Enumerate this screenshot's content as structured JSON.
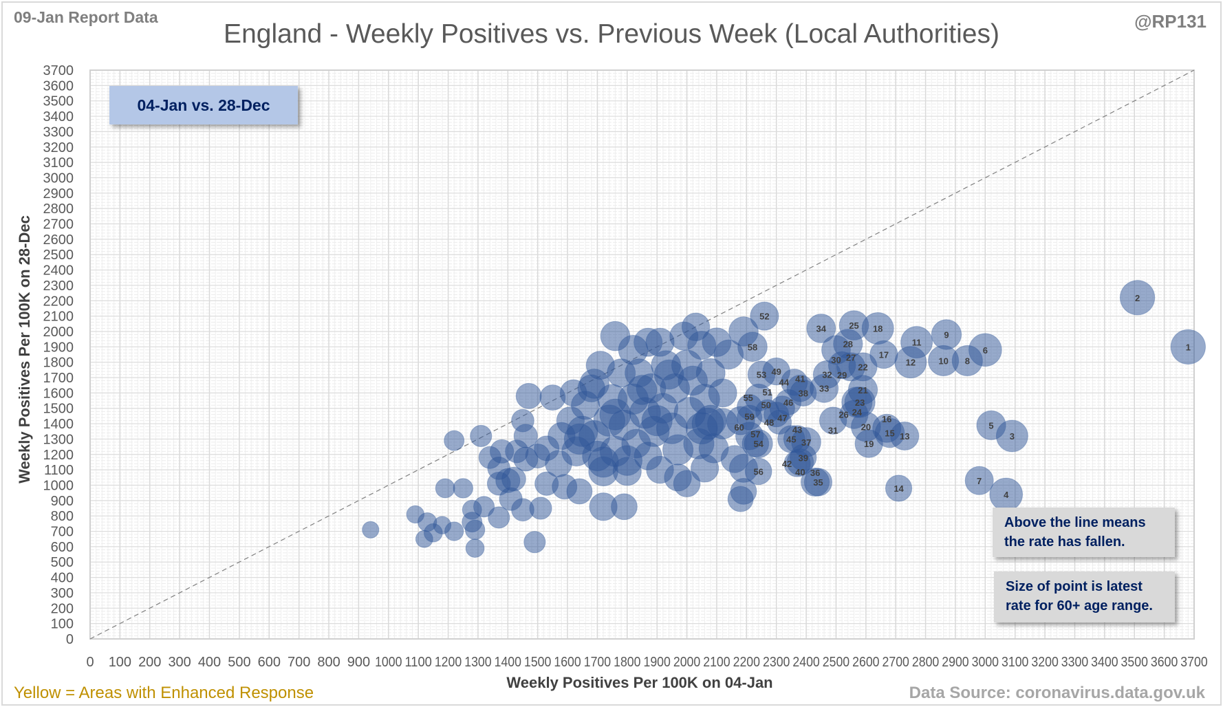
{
  "header": {
    "report": "09-Jan Report Data",
    "handle": "@RP131",
    "title": "England - Weekly Positives vs. Previous Week (Local Authorities)"
  },
  "callouts": {
    "period": "04-Jan vs. 28-Dec",
    "note1": [
      "Above the line means",
      "the rate has fallen."
    ],
    "note2": [
      "Size of point is latest",
      "rate for 60+ age range."
    ]
  },
  "footer": {
    "legend_note": "Yellow = Areas with Enhanced  Response",
    "source": "Data Source: coronavirus.data.gov.uk"
  },
  "colors": {
    "bubble": "#2f5597",
    "callout_fill": "#b4c7e7",
    "note_fill": "#d9d9d9",
    "callout_text": "#002060",
    "enhanced_note": "#bf9000"
  },
  "chart_data": {
    "type": "scatter",
    "subtype": "bubble",
    "xlabel": "Weekly Positives Per 100K on 04-Jan",
    "ylabel": "Weekly Positives Per 100K on 28-Dec",
    "xlim": [
      0,
      3700
    ],
    "ylim": [
      0,
      3700
    ],
    "tick_step": 100,
    "grid": true,
    "reference_line": "y = x (dashed)",
    "labeled_points": [
      {
        "label": "1",
        "x": 3680,
        "y": 1900,
        "size": 780
      },
      {
        "label": "2",
        "x": 3510,
        "y": 2220,
        "size": 780
      },
      {
        "label": "3",
        "x": 3090,
        "y": 1320,
        "size": 650
      },
      {
        "label": "4",
        "x": 3070,
        "y": 940,
        "size": 700
      },
      {
        "label": "5",
        "x": 3020,
        "y": 1390,
        "size": 550
      },
      {
        "label": "6",
        "x": 3000,
        "y": 1880,
        "size": 700
      },
      {
        "label": "7",
        "x": 2980,
        "y": 1030,
        "size": 520
      },
      {
        "label": "8",
        "x": 2940,
        "y": 1810,
        "size": 600
      },
      {
        "label": "9",
        "x": 2870,
        "y": 1980,
        "size": 580
      },
      {
        "label": "10",
        "x": 2860,
        "y": 1810,
        "size": 600
      },
      {
        "label": "11",
        "x": 2770,
        "y": 1930,
        "size": 650
      },
      {
        "label": "12",
        "x": 2750,
        "y": 1800,
        "size": 650
      },
      {
        "label": "13",
        "x": 2730,
        "y": 1320,
        "size": 520
      },
      {
        "label": "14",
        "x": 2710,
        "y": 980,
        "size": 450
      },
      {
        "label": "15",
        "x": 2680,
        "y": 1340,
        "size": 560
      },
      {
        "label": "16",
        "x": 2670,
        "y": 1370,
        "size": 520
      },
      {
        "label": "17",
        "x": 2660,
        "y": 1850,
        "size": 500
      },
      {
        "label": "18",
        "x": 2640,
        "y": 2020,
        "size": 650
      },
      {
        "label": "19",
        "x": 2610,
        "y": 1270,
        "size": 500
      },
      {
        "label": "20",
        "x": 2600,
        "y": 1380,
        "size": 560
      },
      {
        "label": "21",
        "x": 2590,
        "y": 1620,
        "size": 550
      },
      {
        "label": "22",
        "x": 2590,
        "y": 1770,
        "size": 520
      },
      {
        "label": "23",
        "x": 2580,
        "y": 1540,
        "size": 600
      },
      {
        "label": "24",
        "x": 2570,
        "y": 1540,
        "size": 600
      },
      {
        "label": "25",
        "x": 2560,
        "y": 2040,
        "size": 560
      },
      {
        "label": "26",
        "x": 2560,
        "y": 1460,
        "size": 520
      },
      {
        "label": "27",
        "x": 2550,
        "y": 1770,
        "size": 520
      },
      {
        "label": "28",
        "x": 2540,
        "y": 1920,
        "size": 550
      },
      {
        "label": "29",
        "x": 2520,
        "y": 1780,
        "size": 480
      },
      {
        "label": "30",
        "x": 2500,
        "y": 1880,
        "size": 540
      },
      {
        "label": "31",
        "x": 2490,
        "y": 1420,
        "size": 480
      },
      {
        "label": "32",
        "x": 2470,
        "y": 1720,
        "size": 500
      },
      {
        "label": "33",
        "x": 2460,
        "y": 1630,
        "size": 520
      },
      {
        "label": "34",
        "x": 2450,
        "y": 2020,
        "size": 540
      },
      {
        "label": "35",
        "x": 2440,
        "y": 1020,
        "size": 500
      },
      {
        "label": "36",
        "x": 2430,
        "y": 1020,
        "size": 520
      },
      {
        "label": "37",
        "x": 2400,
        "y": 1280,
        "size": 560
      },
      {
        "label": "38",
        "x": 2390,
        "y": 1600,
        "size": 450
      },
      {
        "label": "39",
        "x": 2390,
        "y": 1180,
        "size": 450
      },
      {
        "label": "40",
        "x": 2380,
        "y": 1150,
        "size": 460
      },
      {
        "label": "41",
        "x": 2380,
        "y": 1630,
        "size": 460
      },
      {
        "label": "42",
        "x": 2370,
        "y": 1140,
        "size": 450
      },
      {
        "label": "43",
        "x": 2370,
        "y": 1300,
        "size": 480
      },
      {
        "label": "44",
        "x": 2360,
        "y": 1670,
        "size": 450
      },
      {
        "label": "45",
        "x": 2350,
        "y": 1300,
        "size": 480
      },
      {
        "label": "46",
        "x": 2340,
        "y": 1540,
        "size": 420
      },
      {
        "label": "47",
        "x": 2320,
        "y": 1500,
        "size": 400
      },
      {
        "label": "48",
        "x": 2310,
        "y": 1410,
        "size": 380
      },
      {
        "label": "49",
        "x": 2300,
        "y": 1740,
        "size": 480
      },
      {
        "label": "50",
        "x": 2300,
        "y": 1460,
        "size": 400
      },
      {
        "label": "51",
        "x": 2270,
        "y": 1480,
        "size": 360
      },
      {
        "label": "52",
        "x": 2260,
        "y": 2100,
        "size": 520
      },
      {
        "label": "53",
        "x": 2250,
        "y": 1720,
        "size": 480
      },
      {
        "label": "54",
        "x": 2240,
        "y": 1270,
        "size": 520
      },
      {
        "label": "55",
        "x": 2240,
        "y": 1570,
        "size": 480
      },
      {
        "label": "56",
        "x": 2240,
        "y": 1090,
        "size": 460
      },
      {
        "label": "57",
        "x": 2230,
        "y": 1270,
        "size": 460
      },
      {
        "label": "58",
        "x": 2220,
        "y": 1900,
        "size": 560
      },
      {
        "label": "59",
        "x": 2210,
        "y": 1510,
        "size": 400
      },
      {
        "label": "60",
        "x": 2210,
        "y": 1440,
        "size": 400
      }
    ],
    "other_points": [
      [
        940,
        710,
        180
      ],
      [
        1120,
        650,
        190
      ],
      [
        1090,
        810,
        200
      ],
      [
        1130,
        760,
        230
      ],
      [
        1150,
        690,
        220
      ],
      [
        1180,
        740,
        200
      ],
      [
        1190,
        980,
        240
      ],
      [
        1220,
        700,
        230
      ],
      [
        1220,
        1290,
        260
      ],
      [
        1250,
        980,
        250
      ],
      [
        1290,
        590,
        220
      ],
      [
        1280,
        760,
        260
      ],
      [
        1280,
        840,
        240
      ],
      [
        1310,
        1320,
        300
      ],
      [
        1290,
        710,
        250
      ],
      [
        1320,
        860,
        280
      ],
      [
        1340,
        1180,
        320
      ],
      [
        1370,
        1010,
        350
      ],
      [
        1370,
        790,
        300
      ],
      [
        1370,
        1110,
        330
      ],
      [
        1380,
        1220,
        360
      ],
      [
        1400,
        1030,
        380
      ],
      [
        1410,
        910,
        340
      ],
      [
        1420,
        1040,
        370
      ],
      [
        1430,
        1220,
        340
      ],
      [
        1450,
        1420,
        330
      ],
      [
        1470,
        1580,
        420
      ],
      [
        1460,
        1320,
        360
      ],
      [
        1460,
        1170,
        380
      ],
      [
        1450,
        840,
        330
      ],
      [
        1490,
        630,
        300
      ],
      [
        1510,
        850,
        320
      ],
      [
        1500,
        1190,
        380
      ],
      [
        1530,
        1240,
        400
      ],
      [
        1530,
        1010,
        360
      ],
      [
        1550,
        1570,
        420
      ],
      [
        1570,
        1140,
        460
      ],
      [
        1580,
        1320,
        480
      ],
      [
        1590,
        990,
        400
      ],
      [
        1610,
        1420,
        500
      ],
      [
        1620,
        1600,
        460
      ],
      [
        1630,
        1220,
        560
      ],
      [
        1640,
        960,
        420
      ],
      [
        1650,
        1350,
        600
      ],
      [
        1660,
        1520,
        520
      ],
      [
        1680,
        1630,
        480
      ],
      [
        1690,
        1320,
        620
      ],
      [
        1700,
        1190,
        580
      ],
      [
        1710,
        1780,
        520
      ],
      [
        1720,
        860,
        500
      ],
      [
        1720,
        1090,
        560
      ],
      [
        1740,
        1420,
        640
      ],
      [
        1750,
        1560,
        560
      ],
      [
        1760,
        1970,
        560
      ],
      [
        1760,
        1220,
        600
      ],
      [
        1780,
        1730,
        520
      ],
      [
        1790,
        860,
        440
      ],
      [
        1790,
        1390,
        600
      ],
      [
        1800,
        1090,
        520
      ],
      [
        1820,
        1880,
        560
      ],
      [
        1820,
        1560,
        600
      ],
      [
        1830,
        1270,
        540
      ],
      [
        1840,
        1730,
        520
      ],
      [
        1860,
        1470,
        620
      ],
      [
        1870,
        1930,
        520
      ],
      [
        1870,
        1190,
        500
      ],
      [
        1880,
        1630,
        560
      ],
      [
        1890,
        1350,
        600
      ],
      [
        1910,
        1930,
        520
      ],
      [
        1910,
        1100,
        480
      ],
      [
        1920,
        1500,
        580
      ],
      [
        1930,
        1780,
        560
      ],
      [
        1950,
        1370,
        620
      ],
      [
        1960,
        1630,
        560
      ],
      [
        1970,
        1050,
        480
      ],
      [
        1970,
        1230,
        600
      ],
      [
        1990,
        1970,
        520
      ],
      [
        2000,
        1780,
        600
      ],
      [
        2000,
        1010,
        460
      ],
      [
        2010,
        1470,
        640
      ],
      [
        2020,
        1680,
        560
      ],
      [
        2030,
        2030,
        500
      ],
      [
        2040,
        1270,
        600
      ],
      [
        2050,
        1370,
        640
      ],
      [
        2050,
        1910,
        520
      ],
      [
        2060,
        1110,
        500
      ],
      [
        2060,
        1560,
        580
      ],
      [
        2080,
        1730,
        540
      ],
      [
        2080,
        1420,
        620
      ],
      [
        2090,
        1240,
        560
      ],
      [
        2100,
        1930,
        540
      ],
      [
        2120,
        1600,
        520
      ],
      [
        2120,
        1400,
        600
      ],
      [
        2140,
        1850,
        560
      ],
      [
        2160,
        1170,
        480
      ],
      [
        2180,
        910,
        420
      ],
      [
        2190,
        960,
        440
      ],
      [
        2190,
        2000,
        560
      ],
      [
        2180,
        1420,
        520
      ],
      [
        2190,
        1110,
        520
      ],
      [
        2210,
        1320,
        500
      ],
      [
        1760,
        1460,
        620
      ],
      [
        1690,
        1660,
        560
      ],
      [
        1850,
        1620,
        560
      ],
      [
        1940,
        1720,
        560
      ],
      [
        2070,
        1400,
        640
      ],
      [
        1640,
        1300,
        600
      ],
      [
        1720,
        1150,
        600
      ],
      [
        1800,
        1160,
        580
      ],
      [
        1900,
        1420,
        600
      ]
    ]
  }
}
